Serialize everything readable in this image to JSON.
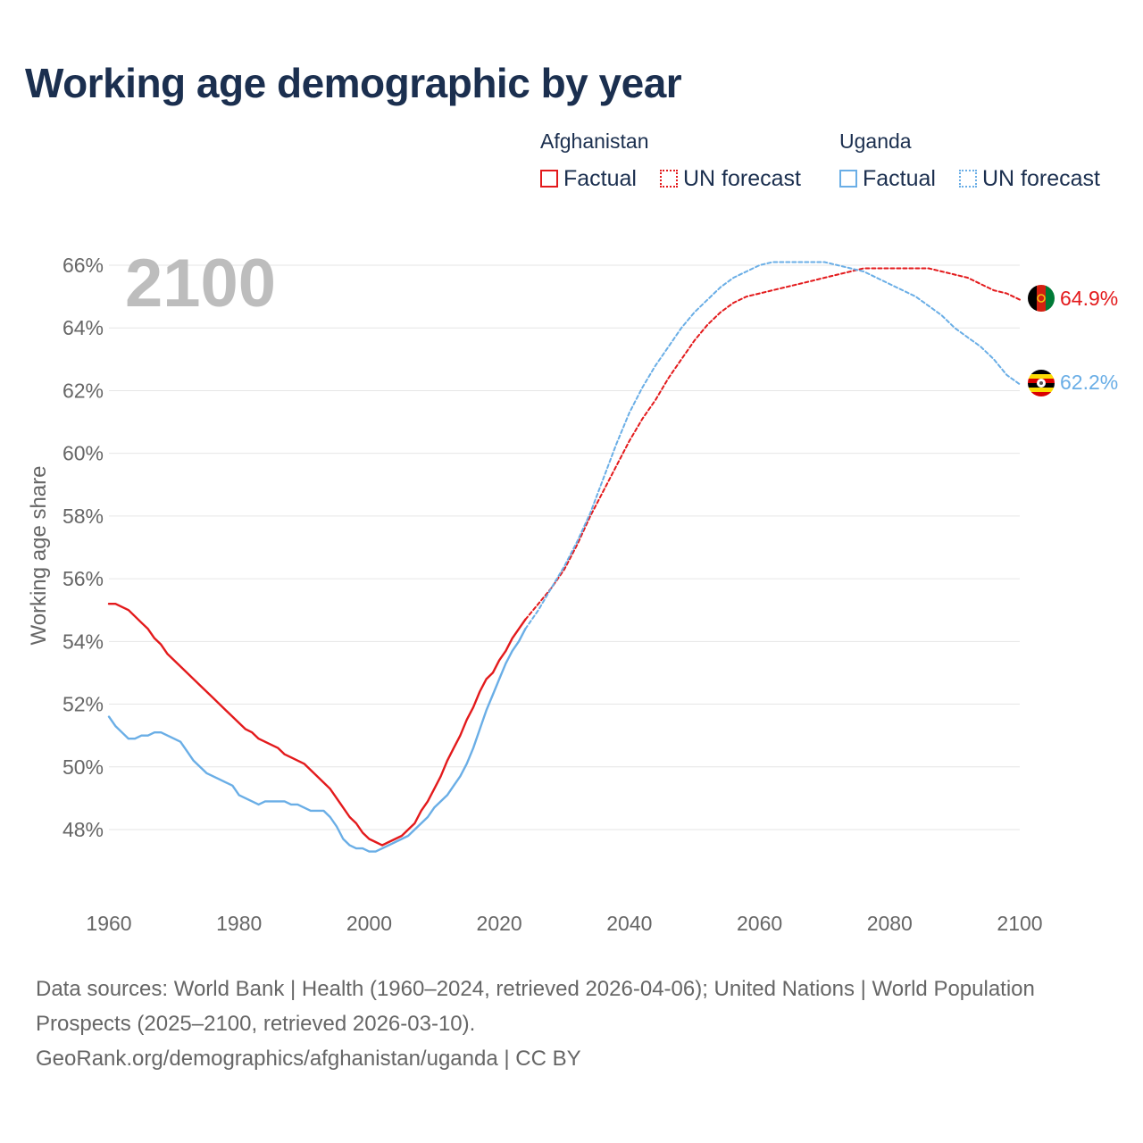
{
  "title": "Working age demographic by year",
  "legend": {
    "groups": [
      {
        "name": "Afghanistan",
        "factual_label": "Factual",
        "forecast_label": "UN forecast"
      },
      {
        "name": "Uganda",
        "factual_label": "Factual",
        "forecast_label": "UN forecast"
      }
    ]
  },
  "colors": {
    "afghanistan": "#e31a1c",
    "uganda": "#6aaee6",
    "title": "#1b2f4f",
    "axis_text": "#666666",
    "grid": "#e6e6e6",
    "year_watermark": "#bdbdbd"
  },
  "footer": {
    "line1": "Data sources: World Bank | Health (1960–2024, retrieved 2026-04-06); United Nations | World Population Prospects (2025–2100, retrieved 2026-03-10).",
    "line2": "GeoRank.org/demographics/afghanistan/uganda | CC BY"
  },
  "chart_data": {
    "type": "line",
    "title": "Working age demographic by year",
    "xlabel": "",
    "ylabel": "Working age share",
    "year_label": "2100",
    "xlim": [
      1960,
      2100
    ],
    "ylim": [
      46,
      66.5
    ],
    "x_ticks": [
      "1960",
      "1980",
      "2000",
      "2020",
      "2040",
      "2060",
      "2080",
      "2100"
    ],
    "y_ticks": [
      "48%",
      "50%",
      "52%",
      "54%",
      "56%",
      "58%",
      "60%",
      "62%",
      "64%",
      "66%"
    ],
    "grid": true,
    "series": [
      {
        "name": "Afghanistan",
        "kind": "factual",
        "icon": "afghanistan-flag-icon",
        "points": [
          [
            1960,
            55.2
          ],
          [
            1961,
            55.2
          ],
          [
            1962,
            55.1
          ],
          [
            1963,
            55.0
          ],
          [
            1964,
            54.8
          ],
          [
            1965,
            54.6
          ],
          [
            1966,
            54.4
          ],
          [
            1967,
            54.1
          ],
          [
            1968,
            53.9
          ],
          [
            1969,
            53.6
          ],
          [
            1970,
            53.4
          ],
          [
            1972,
            53.0
          ],
          [
            1974,
            52.6
          ],
          [
            1976,
            52.2
          ],
          [
            1978,
            51.8
          ],
          [
            1980,
            51.4
          ],
          [
            1981,
            51.2
          ],
          [
            1982,
            51.1
          ],
          [
            1983,
            50.9
          ],
          [
            1985,
            50.7
          ],
          [
            1986,
            50.6
          ],
          [
            1987,
            50.4
          ],
          [
            1988,
            50.3
          ],
          [
            1990,
            50.1
          ],
          [
            1992,
            49.7
          ],
          [
            1994,
            49.3
          ],
          [
            1996,
            48.7
          ],
          [
            1997,
            48.4
          ],
          [
            1998,
            48.2
          ],
          [
            1999,
            47.9
          ],
          [
            2000,
            47.7
          ],
          [
            2001,
            47.6
          ],
          [
            2002,
            47.5
          ],
          [
            2003,
            47.6
          ],
          [
            2004,
            47.7
          ],
          [
            2005,
            47.8
          ],
          [
            2006,
            48.0
          ],
          [
            2007,
            48.2
          ],
          [
            2008,
            48.6
          ],
          [
            2009,
            48.9
          ],
          [
            2010,
            49.3
          ],
          [
            2011,
            49.7
          ],
          [
            2012,
            50.2
          ],
          [
            2013,
            50.6
          ],
          [
            2014,
            51.0
          ],
          [
            2015,
            51.5
          ],
          [
            2016,
            51.9
          ],
          [
            2017,
            52.4
          ],
          [
            2018,
            52.8
          ],
          [
            2019,
            53.0
          ],
          [
            2020,
            53.4
          ],
          [
            2021,
            53.7
          ],
          [
            2022,
            54.1
          ],
          [
            2023,
            54.4
          ],
          [
            2024,
            54.7
          ]
        ]
      },
      {
        "name": "Afghanistan",
        "kind": "UN forecast",
        "label": "64.9%",
        "points": [
          [
            2024,
            54.7
          ],
          [
            2026,
            55.2
          ],
          [
            2028,
            55.7
          ],
          [
            2030,
            56.3
          ],
          [
            2032,
            57.1
          ],
          [
            2034,
            58.0
          ],
          [
            2036,
            58.8
          ],
          [
            2038,
            59.6
          ],
          [
            2040,
            60.4
          ],
          [
            2042,
            61.1
          ],
          [
            2044,
            61.7
          ],
          [
            2046,
            62.4
          ],
          [
            2048,
            63.0
          ],
          [
            2050,
            63.6
          ],
          [
            2052,
            64.1
          ],
          [
            2054,
            64.5
          ],
          [
            2056,
            64.8
          ],
          [
            2058,
            65.0
          ],
          [
            2060,
            65.1
          ],
          [
            2062,
            65.2
          ],
          [
            2064,
            65.3
          ],
          [
            2066,
            65.4
          ],
          [
            2068,
            65.5
          ],
          [
            2070,
            65.6
          ],
          [
            2072,
            65.7
          ],
          [
            2074,
            65.8
          ],
          [
            2076,
            65.9
          ],
          [
            2078,
            65.9
          ],
          [
            2080,
            65.9
          ],
          [
            2082,
            65.9
          ],
          [
            2084,
            65.9
          ],
          [
            2086,
            65.9
          ],
          [
            2088,
            65.8
          ],
          [
            2090,
            65.7
          ],
          [
            2092,
            65.6
          ],
          [
            2094,
            65.4
          ],
          [
            2096,
            65.2
          ],
          [
            2098,
            65.1
          ],
          [
            2100,
            64.9
          ]
        ]
      },
      {
        "name": "Uganda",
        "kind": "factual",
        "icon": "uganda-flag-icon",
        "points": [
          [
            1960,
            51.6
          ],
          [
            1961,
            51.3
          ],
          [
            1962,
            51.1
          ],
          [
            1963,
            50.9
          ],
          [
            1964,
            50.9
          ],
          [
            1965,
            51.0
          ],
          [
            1966,
            51.0
          ],
          [
            1967,
            51.1
          ],
          [
            1968,
            51.1
          ],
          [
            1969,
            51.0
          ],
          [
            1970,
            50.9
          ],
          [
            1971,
            50.8
          ],
          [
            1972,
            50.5
          ],
          [
            1973,
            50.2
          ],
          [
            1974,
            50.0
          ],
          [
            1975,
            49.8
          ],
          [
            1976,
            49.7
          ],
          [
            1977,
            49.6
          ],
          [
            1978,
            49.5
          ],
          [
            1979,
            49.4
          ],
          [
            1980,
            49.1
          ],
          [
            1981,
            49.0
          ],
          [
            1982,
            48.9
          ],
          [
            1983,
            48.8
          ],
          [
            1984,
            48.9
          ],
          [
            1985,
            48.9
          ],
          [
            1986,
            48.9
          ],
          [
            1987,
            48.9
          ],
          [
            1988,
            48.8
          ],
          [
            1989,
            48.8
          ],
          [
            1990,
            48.7
          ],
          [
            1991,
            48.6
          ],
          [
            1992,
            48.6
          ],
          [
            1993,
            48.6
          ],
          [
            1994,
            48.4
          ],
          [
            1995,
            48.1
          ],
          [
            1996,
            47.7
          ],
          [
            1997,
            47.5
          ],
          [
            1998,
            47.4
          ],
          [
            1999,
            47.4
          ],
          [
            2000,
            47.3
          ],
          [
            2001,
            47.3
          ],
          [
            2002,
            47.4
          ],
          [
            2003,
            47.5
          ],
          [
            2004,
            47.6
          ],
          [
            2005,
            47.7
          ],
          [
            2006,
            47.8
          ],
          [
            2007,
            48.0
          ],
          [
            2008,
            48.2
          ],
          [
            2009,
            48.4
          ],
          [
            2010,
            48.7
          ],
          [
            2011,
            48.9
          ],
          [
            2012,
            49.1
          ],
          [
            2013,
            49.4
          ],
          [
            2014,
            49.7
          ],
          [
            2015,
            50.1
          ],
          [
            2016,
            50.6
          ],
          [
            2017,
            51.2
          ],
          [
            2018,
            51.8
          ],
          [
            2019,
            52.3
          ],
          [
            2020,
            52.8
          ],
          [
            2021,
            53.3
          ],
          [
            2022,
            53.7
          ],
          [
            2023,
            54.0
          ],
          [
            2024,
            54.4
          ]
        ]
      },
      {
        "name": "Uganda",
        "kind": "UN forecast",
        "label": "62.2%",
        "points": [
          [
            2024,
            54.4
          ],
          [
            2026,
            55.0
          ],
          [
            2028,
            55.7
          ],
          [
            2030,
            56.4
          ],
          [
            2032,
            57.2
          ],
          [
            2034,
            58.1
          ],
          [
            2036,
            59.2
          ],
          [
            2038,
            60.3
          ],
          [
            2040,
            61.3
          ],
          [
            2042,
            62.1
          ],
          [
            2044,
            62.8
          ],
          [
            2046,
            63.4
          ],
          [
            2048,
            64.0
          ],
          [
            2050,
            64.5
          ],
          [
            2052,
            64.9
          ],
          [
            2054,
            65.3
          ],
          [
            2056,
            65.6
          ],
          [
            2058,
            65.8
          ],
          [
            2060,
            66.0
          ],
          [
            2062,
            66.1
          ],
          [
            2064,
            66.1
          ],
          [
            2066,
            66.1
          ],
          [
            2068,
            66.1
          ],
          [
            2070,
            66.1
          ],
          [
            2072,
            66.0
          ],
          [
            2074,
            65.9
          ],
          [
            2076,
            65.8
          ],
          [
            2078,
            65.6
          ],
          [
            2080,
            65.4
          ],
          [
            2082,
            65.2
          ],
          [
            2084,
            65.0
          ],
          [
            2086,
            64.7
          ],
          [
            2088,
            64.4
          ],
          [
            2090,
            64.0
          ],
          [
            2092,
            63.7
          ],
          [
            2094,
            63.4
          ],
          [
            2096,
            63.0
          ],
          [
            2098,
            62.5
          ],
          [
            2100,
            62.2
          ]
        ]
      }
    ]
  }
}
